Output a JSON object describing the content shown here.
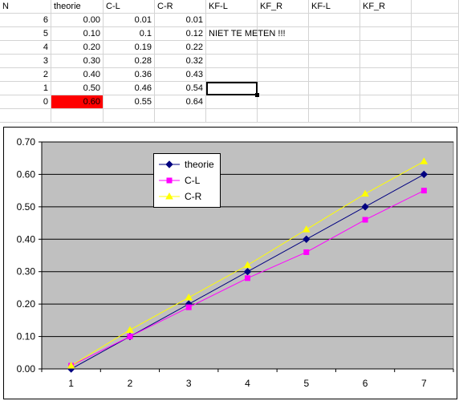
{
  "sheet": {
    "headers": [
      "N",
      "theorie",
      "C-L",
      "C-R",
      "KF-L",
      "KF_R",
      "KF-L",
      "KF_R"
    ],
    "rows": [
      [
        "6",
        "0.00",
        "0.01",
        "0.01",
        "",
        "",
        "",
        ""
      ],
      [
        "5",
        "0.10",
        "0.1",
        "0.12",
        "NIET TE METEN !!!",
        "",
        "",
        ""
      ],
      [
        "4",
        "0.20",
        "0.19",
        "0.22",
        "",
        "",
        "",
        ""
      ],
      [
        "3",
        "0.30",
        "0.28",
        "0.32",
        "",
        "",
        "",
        ""
      ],
      [
        "2",
        "0.40",
        "0.36",
        "0.43",
        "",
        "",
        "",
        ""
      ],
      [
        "1",
        "0.50",
        "0.46",
        "0.54",
        "",
        "",
        "",
        ""
      ],
      [
        "0",
        "0.60",
        "0.55",
        "0.64",
        "",
        "",
        "",
        ""
      ]
    ],
    "highlight_color": "#ff0000"
  },
  "chart_data": {
    "type": "line",
    "x": [
      1,
      2,
      3,
      4,
      5,
      6,
      7
    ],
    "series": [
      {
        "name": "theorie",
        "values": [
          0.0,
          0.1,
          0.2,
          0.3,
          0.4,
          0.5,
          0.6
        ],
        "color": "#000080",
        "marker": "diamond"
      },
      {
        "name": "C-L",
        "values": [
          0.01,
          0.1,
          0.19,
          0.28,
          0.36,
          0.46,
          0.55
        ],
        "color": "#ff00ff",
        "marker": "square"
      },
      {
        "name": "C-R",
        "values": [
          0.01,
          0.12,
          0.22,
          0.32,
          0.43,
          0.54,
          0.64
        ],
        "color": "#ffff00",
        "marker": "triangle"
      }
    ],
    "ylim": [
      0,
      0.7
    ],
    "yticks": [
      "0.00",
      "0.10",
      "0.20",
      "0.30",
      "0.40",
      "0.50",
      "0.60",
      "0.70"
    ],
    "xticks": [
      "1",
      "2",
      "3",
      "4",
      "5",
      "6",
      "7"
    ],
    "grid": "horizontal",
    "plot_background": "#c0c0c0",
    "legend_position": "top-left inside plot",
    "title": "",
    "xlabel": "",
    "ylabel": ""
  }
}
